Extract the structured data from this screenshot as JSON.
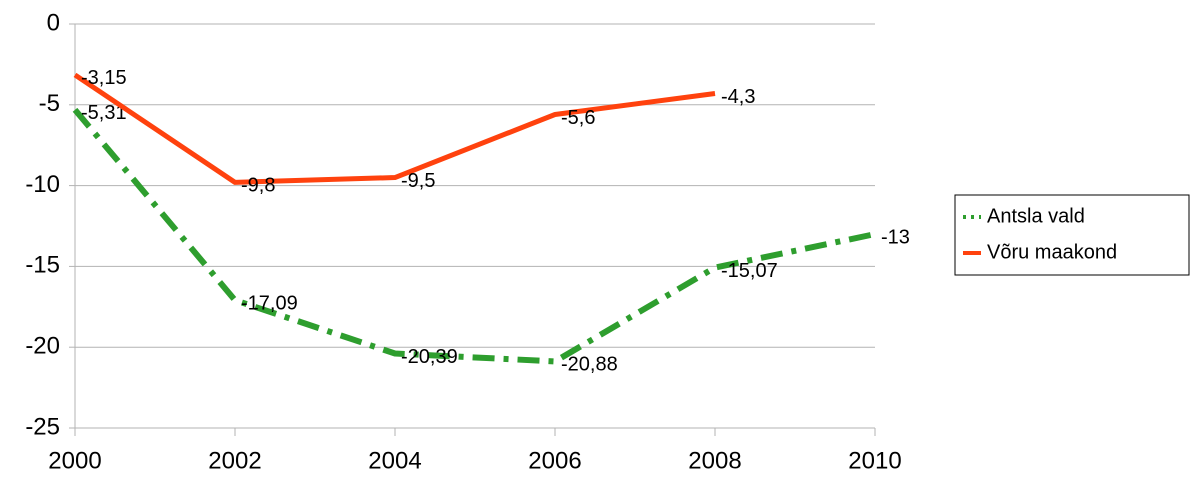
{
  "chart_data": {
    "type": "line",
    "x": [
      2000,
      2002,
      2004,
      2006,
      2008,
      2010
    ],
    "xlim": [
      2000,
      2010
    ],
    "xticks": [
      2000,
      2002,
      2004,
      2006,
      2008,
      2010
    ],
    "ylim": [
      -25,
      0
    ],
    "yticks": [
      0,
      -5,
      -10,
      -15,
      -20,
      -25
    ],
    "grid": true,
    "legend": "right",
    "series": [
      {
        "name": "Antsla vald",
        "color": "#2e9e2e",
        "style": "dash-dot",
        "values": [
          -5.31,
          -17.09,
          -20.39,
          -20.88,
          -15.07,
          -13
        ],
        "value_labels": [
          "-5,31",
          "-17,09",
          "-20,39",
          "-20,88",
          "-15,07",
          "-13"
        ]
      },
      {
        "name": "Võru maakond",
        "color": "#ff420e",
        "style": "solid",
        "values": [
          -3.15,
          -9.8,
          -9.5,
          -5.6,
          -4.3,
          null
        ],
        "value_labels": [
          "-3,15",
          "-9,8",
          "-9,5",
          "-5,6",
          "-4,3",
          null
        ]
      }
    ]
  }
}
